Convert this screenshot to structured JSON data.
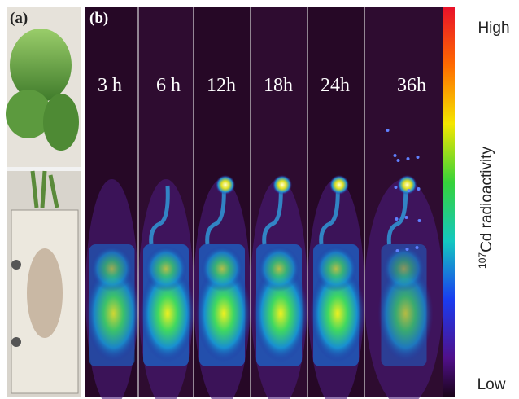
{
  "panel_a": {
    "label": "(a)"
  },
  "panel_b": {
    "label": "(b)",
    "time_labels": [
      "3 h",
      "6 h",
      "12h",
      "18h",
      "24h",
      "36h"
    ]
  },
  "colorbar": {
    "high": "High",
    "low": "Low",
    "title_superscript": "107",
    "title": "Cd radioactivity"
  }
}
